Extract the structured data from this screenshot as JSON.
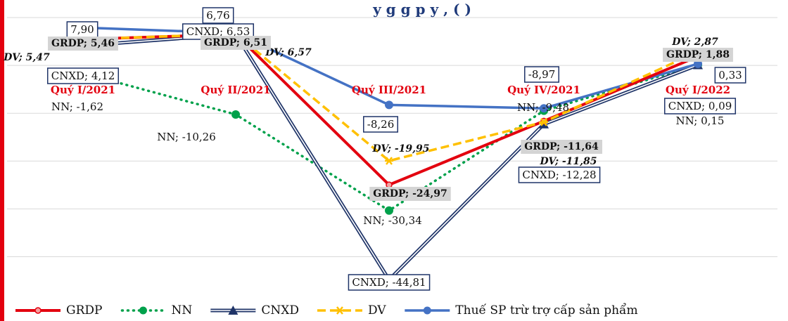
{
  "chart_data": {
    "type": "line",
    "title": "y      g      g           p y        ,      ( )",
    "categories": [
      "Quý I/2021",
      "Quý II/2021",
      "Quý III/2021",
      "Quý IV/2021",
      "Quý I/2022"
    ],
    "ylim": [
      -48,
      10
    ],
    "grid": {
      "horizontal": true
    },
    "legend_position": "bottom",
    "series": [
      {
        "name": "GRDP",
        "key": "grdp",
        "color": "#e3000f",
        "values": [
          5.46,
          6.51,
          -24.97,
          -11.64,
          1.88
        ],
        "labels": [
          "GRDP; 5,46",
          "GRDP; 6,51",
          "GRDP; -24,97",
          "GRDP; -11,64",
          "GRDP; 1,88"
        ]
      },
      {
        "name": "NN",
        "key": "nn",
        "color": "#00a14b",
        "values": [
          -1.62,
          -10.26,
          -30.34,
          -9.48,
          0.15
        ],
        "labels": [
          "NN; -1,62",
          "NN; -10,26",
          "NN; -30,34",
          "NN; -9,48",
          "NN; 0,15"
        ]
      },
      {
        "name": "CNXD",
        "key": "cnxd",
        "color": "#1f3468",
        "values": [
          4.12,
          6.53,
          -44.81,
          -12.28,
          0.09
        ],
        "labels": [
          "CNXD; 4,12",
          "CNXD; 6,53",
          "CNXD; -44,81",
          "CNXD; -12,28",
          "CNXD; 0,09"
        ]
      },
      {
        "name": "DV",
        "key": "dv",
        "color": "#ffc000",
        "values": [
          5.47,
          6.57,
          -19.95,
          -11.85,
          2.87
        ],
        "labels": [
          "DV; 5,47",
          "DV; 6,57",
          "DV; -19,95",
          "DV; -11,85",
          "DV; 2,87"
        ]
      },
      {
        "name": "Thuế SP trừ trợ cấp sản phẩm",
        "key": "tax",
        "color": "#4472c4",
        "values": [
          7.9,
          6.76,
          -8.26,
          -8.97,
          0.33
        ],
        "labels": [
          "7,90",
          "6,76",
          "-8,26",
          "-8,97",
          "0,33"
        ]
      }
    ]
  }
}
